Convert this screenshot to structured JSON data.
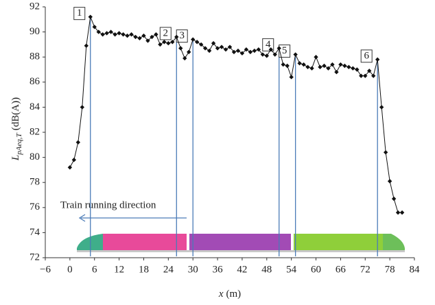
{
  "chart_data": {
    "type": "line",
    "ylabel": "L",
    "ylabel_sub": "pAeq,T",
    "ylabel_unit": "(dB(A))",
    "xlabel_var": "x",
    "xlabel_unit": "(m)",
    "annotation": "Train running direction",
    "xlim": [
      -6,
      84
    ],
    "ylim": [
      72,
      92
    ],
    "xticks": [
      {
        "value": -6,
        "label": "−6"
      },
      0,
      6,
      12,
      18,
      24,
      30,
      36,
      42,
      48,
      54,
      60,
      66,
      72,
      78,
      84
    ],
    "yticks": [
      72,
      74,
      76,
      78,
      80,
      82,
      84,
      86,
      88,
      90,
      92
    ],
    "peaks": [
      {
        "label": "1",
        "x": 5,
        "y": 91.2
      },
      {
        "label": "2",
        "x": 26,
        "y": 89.6
      },
      {
        "label": "3",
        "x": 30,
        "y": 89.4
      },
      {
        "label": "4",
        "x": 51,
        "y": 88.7
      },
      {
        "label": "5",
        "x": 55,
        "y": 88.2
      },
      {
        "label": "6",
        "x": 75,
        "y": 87.8
      }
    ],
    "peak_color": "#4a7bb7",
    "series": [
      {
        "color": "#111111",
        "x": [
          0,
          1,
          2,
          3,
          4,
          5,
          6,
          7,
          8,
          9,
          10,
          11,
          12,
          13,
          14,
          15,
          16,
          17,
          18,
          19,
          20,
          21,
          22,
          23,
          24,
          25,
          26,
          27,
          28,
          29,
          30,
          31,
          32,
          33,
          34,
          35,
          36,
          37,
          38,
          39,
          40,
          41,
          42,
          43,
          44,
          45,
          46,
          47,
          48,
          49,
          50,
          51,
          52,
          53,
          54,
          55,
          56,
          57,
          58,
          59,
          60,
          61,
          62,
          63,
          64,
          65,
          66,
          67,
          68,
          69,
          70,
          71,
          72,
          73,
          74,
          75,
          76,
          77,
          78,
          79,
          80,
          81
        ],
        "values": [
          79.2,
          79.8,
          81.2,
          84.0,
          88.9,
          91.2,
          90.4,
          90.0,
          89.8,
          89.9,
          90.0,
          89.8,
          89.9,
          89.8,
          89.7,
          89.8,
          89.6,
          89.5,
          89.7,
          89.3,
          89.6,
          89.8,
          89.0,
          89.2,
          89.1,
          89.2,
          89.6,
          88.7,
          87.9,
          88.4,
          89.4,
          89.2,
          89.0,
          88.7,
          88.5,
          89.1,
          88.7,
          88.8,
          88.6,
          88.8,
          88.4,
          88.5,
          88.3,
          88.6,
          88.4,
          88.5,
          88.6,
          88.2,
          88.1,
          88.6,
          88.2,
          88.7,
          87.4,
          87.3,
          86.4,
          88.2,
          87.5,
          87.4,
          87.2,
          87.1,
          88.0,
          87.2,
          87.3,
          87.1,
          87.4,
          86.8,
          87.4,
          87.3,
          87.2,
          87.1,
          87.0,
          86.5,
          86.5,
          86.9,
          86.5,
          87.8,
          84.0,
          80.4,
          78.1,
          76.7,
          75.6,
          75.6
        ]
      }
    ]
  }
}
